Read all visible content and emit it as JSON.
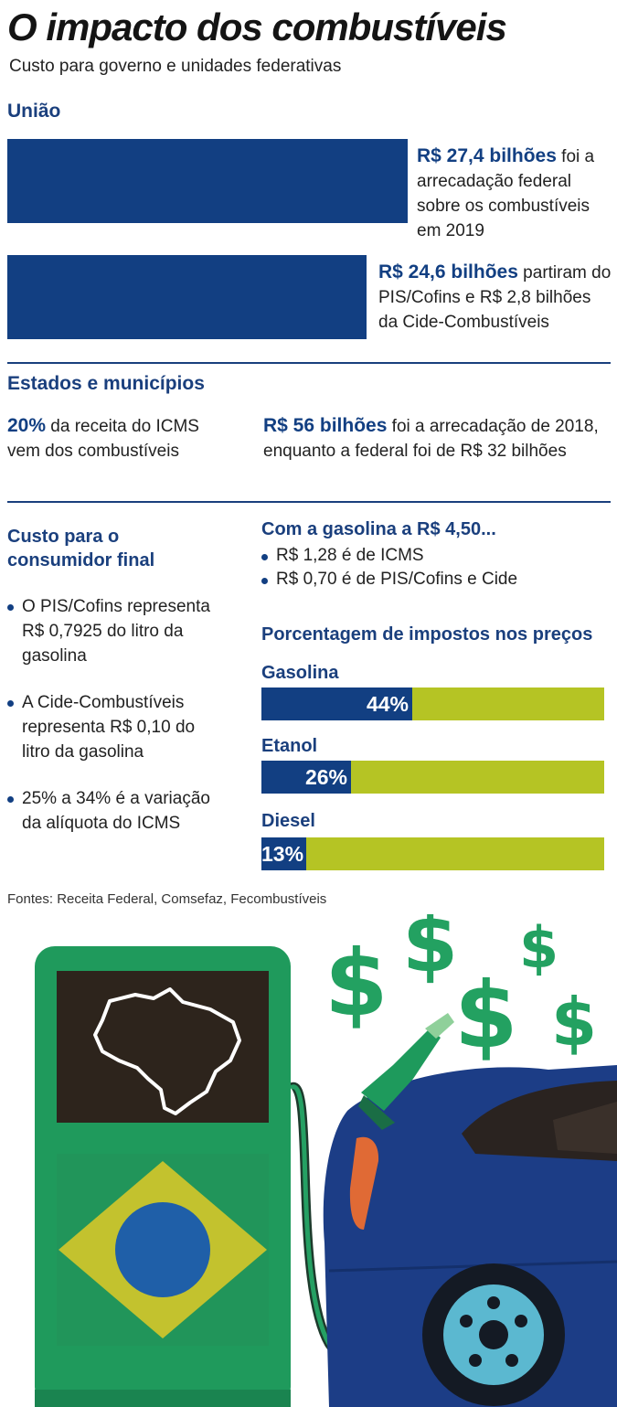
{
  "header": {
    "title": "O impacto dos combustíveis",
    "subtitle": "Custo para governo e unidades federativas"
  },
  "uniao": {
    "heading": "União",
    "items": [
      {
        "value": 27.4,
        "highlight": "R$ 27,4 bilhões",
        "text_first": " foi a",
        "text_rest": "arrecadação federal sobre os combustíveis em 2019"
      },
      {
        "value": 24.6,
        "highlight": "R$ 24,6 bilhões",
        "text_first": " partiram",
        "text_rest": "do PIS/Cofins e R$ 2,8 bilhões da Cide-Combustíveis"
      }
    ]
  },
  "estados": {
    "heading": "Estados e municípios",
    "left": {
      "highlight": "20%",
      "text": " da receita do ICMS vem dos combustíveis"
    },
    "right": {
      "highlight": "R$ 56 bilhões",
      "text": " foi a arrecadação de 2018, enquanto a federal foi de R$ 32 bilhões"
    }
  },
  "consumidor": {
    "heading": "Custo para o consumidor final",
    "items": [
      "O PIS/Cofins representa R$ 0,7925 do litro da gasolina",
      "A Cide-Combustíveis representa R$ 0,10 do litro da gasolina",
      "25% a 34% é a variação da alíquota do ICMS"
    ]
  },
  "gasolina_450": {
    "heading": "Com a gasolina a R$ 4,50...",
    "items": [
      "R$ 1,28 é de ICMS",
      "R$ 0,70 é de PIS/Cofins e Cide"
    ]
  },
  "chart_data": {
    "type": "bar",
    "title": "Porcentagem de impostos nos preços",
    "categories": [
      "Gasolina",
      "Etanol",
      "Diesel"
    ],
    "values": [
      44,
      26,
      13
    ],
    "value_labels": [
      "44%",
      "26%",
      "13%"
    ],
    "ylim": [
      0,
      100
    ],
    "colors": {
      "tax": "#123f82",
      "rest": "#b5c424"
    }
  },
  "sources": "Fontes: Receita Federal, Comsefaz, Fecombustíveis",
  "illustration": {
    "icons": [
      "fuel-pump-icon",
      "brazil-map-icon",
      "brazil-flag-icon",
      "dollar-sign-icon",
      "car-icon",
      "fuel-nozzle-icon"
    ],
    "colors": {
      "pump": "#1f9a5c",
      "screen": "#2d241c",
      "flag_green": "#21955a",
      "flag_yellow": "#c3c22e",
      "flag_blue": "#1f5fa8",
      "car": "#1c3d86",
      "dollar": "#23a161"
    }
  }
}
